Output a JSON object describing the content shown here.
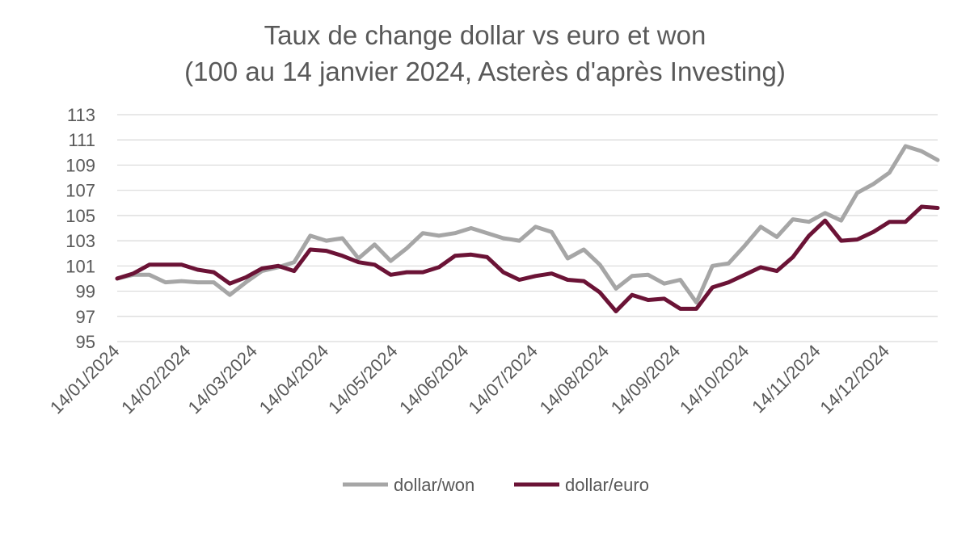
{
  "chart_data": {
    "type": "line",
    "title": "Taux de change dollar vs euro et won",
    "subtitle": "(100 au 14 janvier 2024, Asterès d'après Investing)",
    "ylim": [
      95,
      113
    ],
    "yticks": [
      95,
      97,
      99,
      101,
      103,
      105,
      107,
      109,
      111,
      113
    ],
    "grid": true,
    "legend": "bottom",
    "x_tick_labels": [
      "14/01/2024",
      "14/02/2024",
      "14/03/2024",
      "14/04/2024",
      "14/05/2024",
      "14/06/2024",
      "14/07/2024",
      "14/08/2024",
      "14/09/2024",
      "14/10/2024",
      "14/11/2024",
      "14/12/2024"
    ],
    "weeks": 51,
    "series": [
      {
        "name": "dollar/won",
        "color": "#a6a6a6",
        "values": [
          100.0,
          100.3,
          100.3,
          99.7,
          99.8,
          99.7,
          99.7,
          98.7,
          99.7,
          100.6,
          100.9,
          101.3,
          103.4,
          103.0,
          103.2,
          101.6,
          102.7,
          101.4,
          102.4,
          103.6,
          103.4,
          103.6,
          104.0,
          103.6,
          103.2,
          103.0,
          104.1,
          103.7,
          101.6,
          102.3,
          101.1,
          99.2,
          100.2,
          100.3,
          99.6,
          99.9,
          98.1,
          101.0,
          101.2,
          102.6,
          104.1,
          103.3,
          104.7,
          104.5,
          105.2,
          104.6,
          106.8,
          107.5,
          108.4,
          110.5,
          110.1,
          109.4
        ]
      },
      {
        "name": "dollar/euro",
        "color": "#6b1336",
        "values": [
          100.0,
          100.4,
          101.1,
          101.1,
          101.1,
          100.7,
          100.5,
          99.6,
          100.1,
          100.8,
          101.0,
          100.6,
          102.3,
          102.2,
          101.8,
          101.3,
          101.1,
          100.3,
          100.5,
          100.5,
          100.9,
          101.8,
          101.9,
          101.7,
          100.5,
          99.9,
          100.2,
          100.4,
          99.9,
          99.8,
          98.9,
          97.4,
          98.7,
          98.3,
          98.4,
          97.6,
          97.6,
          99.3,
          99.7,
          100.3,
          100.9,
          100.6,
          101.7,
          103.4,
          104.6,
          103.0,
          103.1,
          103.7,
          104.5,
          104.5,
          105.7,
          105.6
        ]
      }
    ]
  }
}
